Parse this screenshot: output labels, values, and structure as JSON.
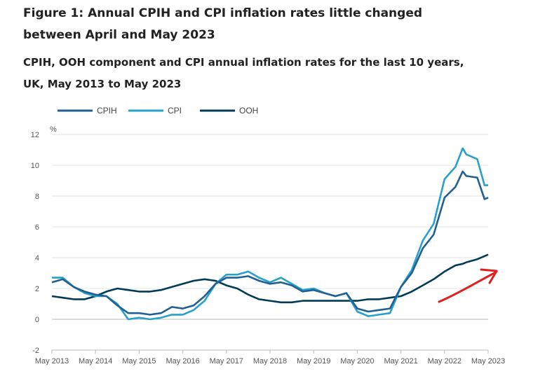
{
  "header": {
    "title_line1": "Figure 1: Annual CPIH and CPI inflation rates little changed",
    "title_line2": "between April and May 2023",
    "subtitle_line1": "CPIH, OOH component and CPI annual inflation rates for the last 10 years,",
    "subtitle_line2": "UK, May 2013 to May 2023"
  },
  "colors": {
    "CPIH": "#206095",
    "CPI": "#27a0cc",
    "OOH": "#003c57",
    "gridline": "#e5e5e5",
    "zero_line": "#bbbbbb",
    "annotation_arrow": "#e02020"
  },
  "annotation": {
    "type": "red-arrow",
    "points_to": "OOH"
  },
  "chart_data": {
    "type": "line",
    "ylabel": "%",
    "ylim": [
      -2,
      12
    ],
    "yticks": [
      "-2",
      "0",
      "2",
      "4",
      "6",
      "8",
      "10",
      "12"
    ],
    "xlim": [
      "2013-05",
      "2023-05"
    ],
    "xticks": [
      "May 2013",
      "May 2014",
      "May 2015",
      "May 2016",
      "May 2017",
      "May 2018",
      "May 2019",
      "May 2020",
      "May 2021",
      "May 2022",
      "May 2023"
    ],
    "grid": true,
    "legend_position": "top-left",
    "series": [
      {
        "name": "CPIH",
        "x": [
          "2013-05",
          "2013-08",
          "2013-11",
          "2014-02",
          "2014-05",
          "2014-08",
          "2014-11",
          "2015-02",
          "2015-05",
          "2015-08",
          "2015-11",
          "2016-02",
          "2016-05",
          "2016-08",
          "2016-11",
          "2017-02",
          "2017-05",
          "2017-08",
          "2017-11",
          "2018-02",
          "2018-05",
          "2018-08",
          "2018-11",
          "2019-02",
          "2019-05",
          "2019-08",
          "2019-11",
          "2020-02",
          "2020-05",
          "2020-08",
          "2020-11",
          "2021-02",
          "2021-05",
          "2021-08",
          "2021-11",
          "2022-02",
          "2022-05",
          "2022-08",
          "2022-10",
          "2022-11",
          "2023-02",
          "2023-04",
          "2023-05"
        ],
        "values": [
          2.4,
          2.6,
          2.1,
          1.8,
          1.6,
          1.5,
          0.9,
          0.4,
          0.4,
          0.3,
          0.4,
          0.8,
          0.7,
          0.9,
          1.5,
          2.3,
          2.7,
          2.7,
          2.8,
          2.5,
          2.3,
          2.4,
          2.2,
          1.8,
          1.9,
          1.7,
          1.5,
          1.7,
          0.7,
          0.5,
          0.6,
          0.7,
          2.1,
          3.0,
          4.6,
          5.5,
          7.9,
          8.6,
          9.6,
          9.3,
          9.2,
          7.8,
          7.9
        ]
      },
      {
        "name": "CPI",
        "x": [
          "2013-05",
          "2013-08",
          "2013-11",
          "2014-02",
          "2014-05",
          "2014-08",
          "2014-11",
          "2015-02",
          "2015-05",
          "2015-08",
          "2015-11",
          "2016-02",
          "2016-05",
          "2016-08",
          "2016-11",
          "2017-02",
          "2017-05",
          "2017-08",
          "2017-11",
          "2018-02",
          "2018-05",
          "2018-08",
          "2018-11",
          "2019-02",
          "2019-05",
          "2019-08",
          "2019-11",
          "2020-02",
          "2020-05",
          "2020-08",
          "2020-11",
          "2021-02",
          "2021-05",
          "2021-08",
          "2021-11",
          "2022-02",
          "2022-05",
          "2022-08",
          "2022-10",
          "2022-11",
          "2023-02",
          "2023-04",
          "2023-05"
        ],
        "values": [
          2.7,
          2.7,
          2.1,
          1.7,
          1.5,
          1.5,
          1.0,
          0.0,
          0.1,
          0.0,
          0.1,
          0.3,
          0.3,
          0.6,
          1.2,
          2.3,
          2.9,
          2.9,
          3.1,
          2.7,
          2.4,
          2.7,
          2.3,
          1.9,
          2.0,
          1.7,
          1.5,
          1.7,
          0.5,
          0.2,
          0.3,
          0.4,
          2.1,
          3.2,
          5.1,
          6.2,
          9.1,
          9.9,
          11.1,
          10.7,
          10.4,
          8.7,
          8.7
        ]
      },
      {
        "name": "OOH",
        "x": [
          "2013-05",
          "2013-08",
          "2013-11",
          "2014-02",
          "2014-05",
          "2014-08",
          "2014-11",
          "2015-02",
          "2015-05",
          "2015-08",
          "2015-11",
          "2016-02",
          "2016-05",
          "2016-08",
          "2016-11",
          "2017-02",
          "2017-05",
          "2017-08",
          "2017-11",
          "2018-02",
          "2018-05",
          "2018-08",
          "2018-11",
          "2019-02",
          "2019-05",
          "2019-08",
          "2019-11",
          "2020-02",
          "2020-05",
          "2020-08",
          "2020-11",
          "2021-02",
          "2021-05",
          "2021-08",
          "2021-11",
          "2022-02",
          "2022-05",
          "2022-08",
          "2022-10",
          "2022-11",
          "2023-02",
          "2023-04",
          "2023-05"
        ],
        "values": [
          1.5,
          1.4,
          1.3,
          1.3,
          1.5,
          1.8,
          2.0,
          1.9,
          1.8,
          1.8,
          1.9,
          2.1,
          2.3,
          2.5,
          2.6,
          2.5,
          2.2,
          2.0,
          1.6,
          1.3,
          1.2,
          1.1,
          1.1,
          1.2,
          1.2,
          1.2,
          1.2,
          1.2,
          1.2,
          1.3,
          1.3,
          1.4,
          1.5,
          1.8,
          2.2,
          2.6,
          3.1,
          3.5,
          3.6,
          3.7,
          3.9,
          4.1,
          4.2
        ]
      }
    ]
  }
}
